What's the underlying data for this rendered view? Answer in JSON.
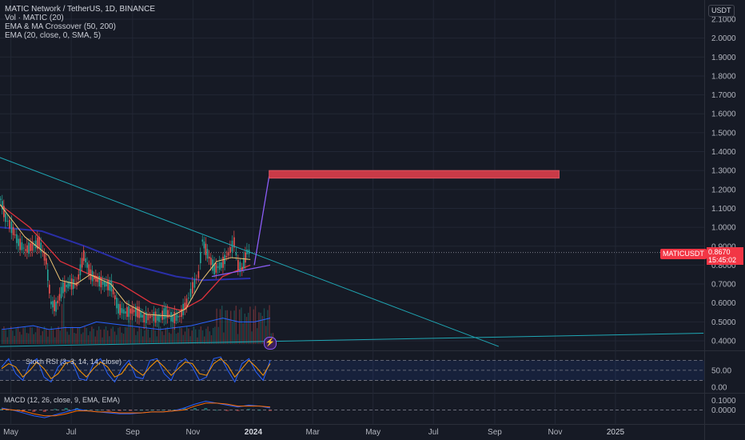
{
  "header": {
    "symbol_title": "MATIC Network / TetherUS, 1D, BINANCE",
    "indicators": [
      "Vol · MATIC (20)",
      "EMA & MA Crossover (50, 200)",
      "EMA (20, close, 0, SMA, 5)"
    ]
  },
  "currency_button": "USDT",
  "price_tag": {
    "label": "MATICUSDT",
    "price": "0.8670",
    "countdown": "15:45:02"
  },
  "lightning_icon": "lightning-bolt-icon",
  "chart_data": {
    "type": "line",
    "title": "MATIC Network / TetherUS, 1D, BINANCE",
    "y_ticks": [
      "2.1000",
      "2.0000",
      "1.9000",
      "1.8000",
      "1.7000",
      "1.6000",
      "1.5000",
      "1.4000",
      "1.3000",
      "1.2000",
      "1.1000",
      "1.0000",
      "0.9000",
      "0.8000",
      "0.7000",
      "0.6000",
      "0.5000",
      "0.4000"
    ],
    "ylim": [
      0.37,
      2.13
    ],
    "x_ticks": [
      "May",
      "Jul",
      "Sep",
      "Nov",
      "2024",
      "Mar",
      "May",
      "Jul",
      "Sep",
      "Nov",
      "2025"
    ],
    "current_price": 0.867,
    "price_series": [
      {
        "x": "2023-04-20",
        "y": 1.15
      },
      {
        "x": "2023-04-25",
        "y": 1.05
      },
      {
        "x": "2023-05-01",
        "y": 1.0
      },
      {
        "x": "2023-05-08",
        "y": 0.92
      },
      {
        "x": "2023-05-15",
        "y": 0.88
      },
      {
        "x": "2023-05-22",
        "y": 0.9
      },
      {
        "x": "2023-05-29",
        "y": 0.92
      },
      {
        "x": "2023-06-05",
        "y": 0.82
      },
      {
        "x": "2023-06-10",
        "y": 0.6
      },
      {
        "x": "2023-06-15",
        "y": 0.58
      },
      {
        "x": "2023-06-22",
        "y": 0.68
      },
      {
        "x": "2023-06-29",
        "y": 0.7
      },
      {
        "x": "2023-07-06",
        "y": 0.7
      },
      {
        "x": "2023-07-13",
        "y": 0.85
      },
      {
        "x": "2023-07-20",
        "y": 0.75
      },
      {
        "x": "2023-07-27",
        "y": 0.72
      },
      {
        "x": "2023-08-03",
        "y": 0.7
      },
      {
        "x": "2023-08-10",
        "y": 0.69
      },
      {
        "x": "2023-08-17",
        "y": 0.57
      },
      {
        "x": "2023-08-24",
        "y": 0.55
      },
      {
        "x": "2023-08-31",
        "y": 0.56
      },
      {
        "x": "2023-09-07",
        "y": 0.55
      },
      {
        "x": "2023-09-12",
        "y": 0.52
      },
      {
        "x": "2023-09-20",
        "y": 0.53
      },
      {
        "x": "2023-09-27",
        "y": 0.52
      },
      {
        "x": "2023-10-04",
        "y": 0.55
      },
      {
        "x": "2023-10-11",
        "y": 0.52
      },
      {
        "x": "2023-10-18",
        "y": 0.53
      },
      {
        "x": "2023-10-25",
        "y": 0.6
      },
      {
        "x": "2023-10-31",
        "y": 0.68
      },
      {
        "x": "2023-11-06",
        "y": 0.75
      },
      {
        "x": "2023-11-10",
        "y": 0.93
      },
      {
        "x": "2023-11-15",
        "y": 0.86
      },
      {
        "x": "2023-11-22",
        "y": 0.78
      },
      {
        "x": "2023-11-29",
        "y": 0.8
      },
      {
        "x": "2023-12-06",
        "y": 0.86
      },
      {
        "x": "2023-12-12",
        "y": 0.92
      },
      {
        "x": "2023-12-16",
        "y": 0.8
      },
      {
        "x": "2023-12-20",
        "y": 0.78
      },
      {
        "x": "2023-12-25",
        "y": 0.87
      },
      {
        "x": "2023-12-29",
        "y": 0.87
      }
    ],
    "ema_20": [
      {
        "x": "2023-04-20",
        "y": 1.12
      },
      {
        "x": "2023-05-15",
        "y": 0.95
      },
      {
        "x": "2023-06-08",
        "y": 0.85
      },
      {
        "x": "2023-06-20",
        "y": 0.72
      },
      {
        "x": "2023-07-06",
        "y": 0.7
      },
      {
        "x": "2023-07-20",
        "y": 0.75
      },
      {
        "x": "2023-08-10",
        "y": 0.7
      },
      {
        "x": "2023-08-25",
        "y": 0.6
      },
      {
        "x": "2023-09-15",
        "y": 0.54
      },
      {
        "x": "2023-10-10",
        "y": 0.53
      },
      {
        "x": "2023-10-25",
        "y": 0.57
      },
      {
        "x": "2023-11-10",
        "y": 0.72
      },
      {
        "x": "2023-11-25",
        "y": 0.82
      },
      {
        "x": "2023-12-10",
        "y": 0.84
      },
      {
        "x": "2023-12-29",
        "y": 0.83
      }
    ],
    "ema_50": [
      {
        "x": "2023-04-20",
        "y": 1.12
      },
      {
        "x": "2023-05-20",
        "y": 1.0
      },
      {
        "x": "2023-06-20",
        "y": 0.82
      },
      {
        "x": "2023-07-20",
        "y": 0.75
      },
      {
        "x": "2023-08-20",
        "y": 0.7
      },
      {
        "x": "2023-09-20",
        "y": 0.6
      },
      {
        "x": "2023-10-20",
        "y": 0.56
      },
      {
        "x": "2023-11-10",
        "y": 0.62
      },
      {
        "x": "2023-12-01",
        "y": 0.74
      },
      {
        "x": "2023-12-29",
        "y": 0.8
      }
    ],
    "ma_200": [
      {
        "x": "2023-04-20",
        "y": 1.0
      },
      {
        "x": "2023-06-01",
        "y": 0.98
      },
      {
        "x": "2023-07-15",
        "y": 0.9
      },
      {
        "x": "2023-09-01",
        "y": 0.8
      },
      {
        "x": "2023-10-15",
        "y": 0.74
      },
      {
        "x": "2023-11-10",
        "y": 0.72
      },
      {
        "x": "2023-12-29",
        "y": 0.73
      }
    ],
    "volume_ma": [
      0.46,
      0.47,
      0.48,
      0.46,
      0.47,
      0.47,
      0.5,
      0.49,
      0.48,
      0.47,
      0.46,
      0.47,
      0.48,
      0.5,
      0.52,
      0.5,
      0.5,
      0.52
    ],
    "drawings": {
      "descending_trendline": [
        {
          "x": "2023-03-10",
          "y": 1.45
        },
        {
          "x": "2024-09-05",
          "y": 0.37
        }
      ],
      "support_line": [
        {
          "x": "2023-04-20",
          "y": 0.37
        },
        {
          "x": "2025-03-31",
          "y": 0.44
        }
      ],
      "purple_support": [
        {
          "x": "2023-11-20",
          "y": 0.74
        },
        {
          "x": "2024-01-18",
          "y": 0.8
        }
      ],
      "projection": [
        {
          "x": "2024-01-02",
          "y": 0.8
        },
        {
          "x": "2024-01-17",
          "y": 1.27
        }
      ],
      "target_zone": {
        "x_start": "2024-01-17",
        "x_end": "2024-11-05",
        "y_low": 1.26,
        "y_high": 1.3
      }
    },
    "stoch_rsi": {
      "label": "Stoch RSI (3, 3, 14, 14, close)",
      "ticks": [
        "50.00",
        "0.00"
      ],
      "ylim": [
        -10,
        100
      ],
      "k": [
        60,
        85,
        40,
        20,
        70,
        85,
        30,
        15,
        60,
        80,
        75,
        25,
        20,
        70,
        85,
        40,
        15,
        55,
        80,
        30,
        25,
        80,
        85,
        40,
        20,
        70,
        85,
        60,
        20,
        30,
        85,
        90,
        50,
        15,
        70,
        85,
        45,
        20,
        80
      ],
      "d": [
        55,
        70,
        60,
        30,
        50,
        75,
        55,
        25,
        40,
        70,
        78,
        50,
        30,
        55,
        75,
        60,
        30,
        40,
        70,
        50,
        35,
        60,
        80,
        60,
        35,
        55,
        75,
        70,
        40,
        35,
        70,
        85,
        65,
        30,
        55,
        80,
        60,
        35,
        70
      ]
    },
    "macd": {
      "label": "MACD (12, 26, close, 9, EMA, EMA)",
      "ticks": [
        "0.1000",
        "0.0000"
      ],
      "ylim": [
        -0.12,
        0.16
      ],
      "macd_line": [
        0.02,
        0.0,
        -0.03,
        -0.06,
        -0.08,
        -0.05,
        -0.02,
        0.01,
        -0.01,
        -0.02,
        -0.03,
        -0.04,
        -0.04,
        -0.03,
        -0.02,
        -0.02,
        -0.01,
        0.02,
        0.06,
        0.09,
        0.07,
        0.05,
        0.03,
        0.05,
        0.04,
        0.02
      ],
      "signal_line": [
        0.01,
        0.0,
        -0.01,
        -0.04,
        -0.06,
        -0.06,
        -0.04,
        -0.01,
        -0.01,
        -0.02,
        -0.02,
        -0.03,
        -0.03,
        -0.03,
        -0.02,
        -0.02,
        -0.01,
        0.0,
        0.04,
        0.07,
        0.07,
        0.06,
        0.04,
        0.04,
        0.04,
        0.03
      ]
    }
  },
  "colors": {
    "background": "#161a25",
    "grid": "#222735",
    "up": "#26a69a",
    "down": "#ef5350",
    "ema20": "#f0c674",
    "ema50": "#e0323c",
    "ma200": "#2a2fa8",
    "vol_ma": "#2962ff",
    "trendline": "#1fa7b4",
    "purple": "#8b5cf6",
    "target": "#c93a47",
    "price_tag": "#f23645"
  }
}
